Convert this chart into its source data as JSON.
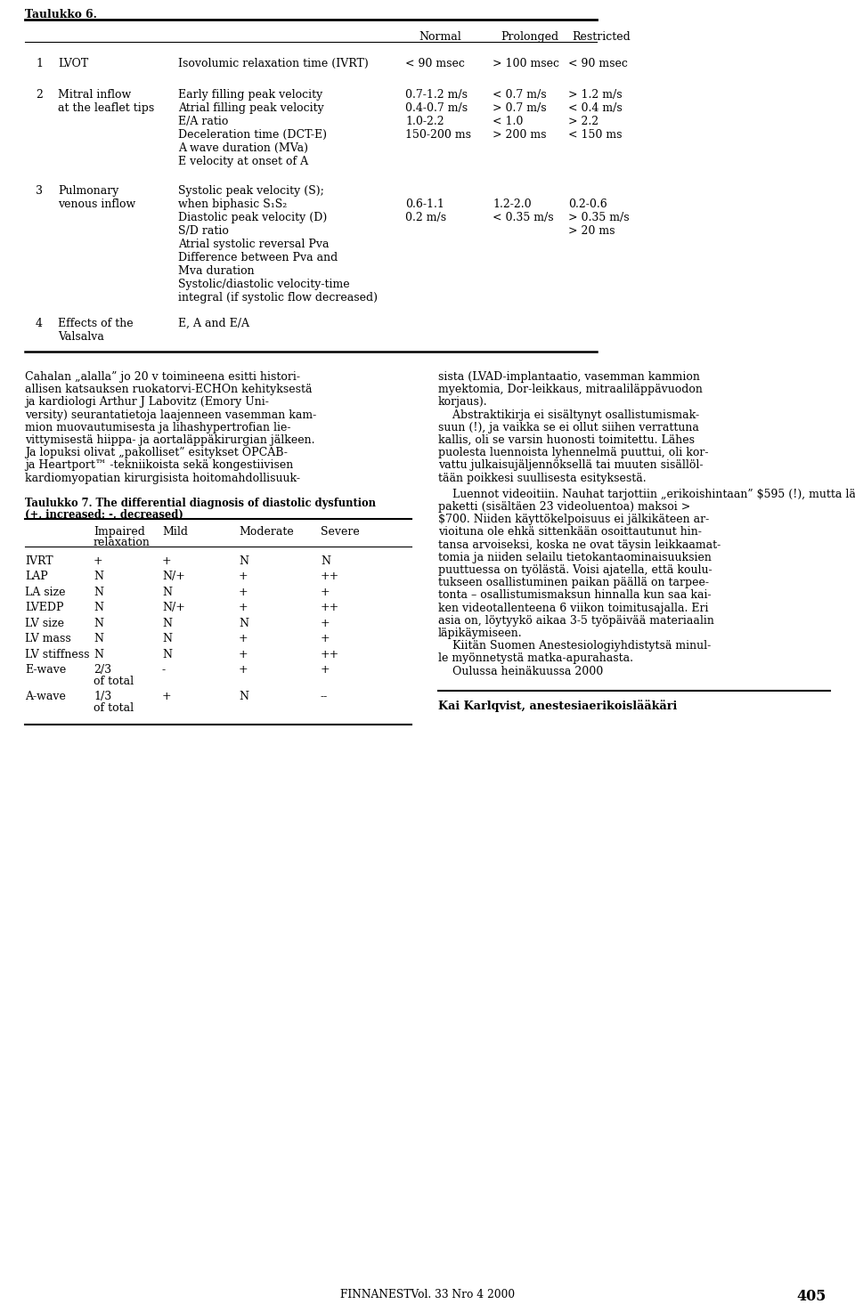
{
  "title": "Taulukko 6.",
  "bg_color": "#ffffff",
  "text_color": "#000000",
  "table7_title": "Taulukko 7. The differential diagnosis of diastolic dysfuntion",
  "table7_subtitle": "(+, increased; -, decreased)",
  "table7_rows": [
    [
      "IVRT",
      "+",
      "+",
      "N",
      "N"
    ],
    [
      "LAP",
      "N",
      "N/+",
      "+",
      "++"
    ],
    [
      "LA size",
      "N",
      "N",
      "+",
      "+"
    ],
    [
      "LVEDP",
      "N",
      "N/+",
      "+",
      "++"
    ],
    [
      "LV size",
      "N",
      "N",
      "N",
      "+"
    ],
    [
      "LV mass",
      "N",
      "N",
      "+",
      "+"
    ],
    [
      "LV stiffness",
      "N",
      "N",
      "+",
      "++"
    ],
    [
      "E-wave",
      "2/3\nof total",
      "-",
      "+",
      "+"
    ],
    [
      "A-wave",
      "1/3\nof total",
      "+",
      "N",
      "--"
    ]
  ],
  "author_text": "Kai Karlqvist, anestesiaerikoislääkäri",
  "footer_text": "FINNANESTVol. 33 Nro 4 2000",
  "footer_page": "405"
}
